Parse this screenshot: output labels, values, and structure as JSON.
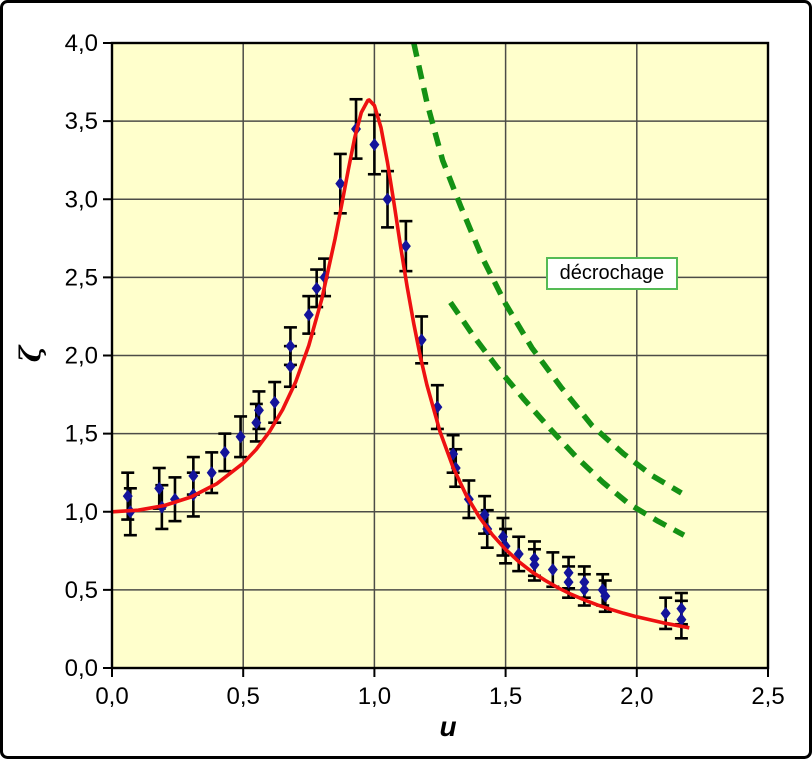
{
  "figure": {
    "page_background": "#ffffff",
    "frame_color": "#000000",
    "plot_background": "#ffffcc",
    "grid_color": "#4d4d47",
    "axis_color": "#000000"
  },
  "chart_data": {
    "type": "scatter",
    "title": "",
    "xlabel": "u",
    "ylabel": "ζ",
    "xlim": [
      0.0,
      2.5
    ],
    "ylim": [
      0.0,
      4.0
    ],
    "grid": true,
    "x_ticks": [
      {
        "value": 0.0,
        "label": "0,0"
      },
      {
        "value": 0.5,
        "label": "0,5"
      },
      {
        "value": 1.0,
        "label": "1,0"
      },
      {
        "value": 1.5,
        "label": "1,5"
      },
      {
        "value": 2.0,
        "label": "2,0"
      },
      {
        "value": 2.5,
        "label": "2,5"
      }
    ],
    "y_ticks": [
      {
        "value": 0.0,
        "label": "0,0"
      },
      {
        "value": 0.5,
        "label": "0,5"
      },
      {
        "value": 1.0,
        "label": "1,0"
      },
      {
        "value": 1.5,
        "label": "1,5"
      },
      {
        "value": 2.0,
        "label": "2,0"
      },
      {
        "value": 2.5,
        "label": "2,5"
      },
      {
        "value": 3.0,
        "label": "3,0"
      },
      {
        "value": 3.5,
        "label": "3,5"
      },
      {
        "value": 4.0,
        "label": "4,0"
      }
    ],
    "annotation": {
      "text": "décrochage",
      "x": 1.885,
      "y": 2.53,
      "border_color": "#55bb55",
      "background": "#ffffff"
    },
    "series": [
      {
        "name": "measured-points",
        "type": "scatter",
        "marker": "diamond",
        "color": "#14149b",
        "error_bar_color": "#000000",
        "points": [
          [
            0.06,
            1.1,
            0.15
          ],
          [
            0.07,
            1.0,
            0.15
          ],
          [
            0.18,
            1.15,
            0.13
          ],
          [
            0.19,
            1.03,
            0.14
          ],
          [
            0.24,
            1.08,
            0.14
          ],
          [
            0.31,
            1.23,
            0.12
          ],
          [
            0.31,
            1.11,
            0.14
          ],
          [
            0.38,
            1.25,
            0.13
          ],
          [
            0.43,
            1.38,
            0.12
          ],
          [
            0.49,
            1.48,
            0.13
          ],
          [
            0.55,
            1.57,
            0.12
          ],
          [
            0.56,
            1.65,
            0.12
          ],
          [
            0.62,
            1.7,
            0.13
          ],
          [
            0.68,
            1.93,
            0.13
          ],
          [
            0.68,
            2.06,
            0.12
          ],
          [
            0.75,
            2.26,
            0.12
          ],
          [
            0.78,
            2.43,
            0.12
          ],
          [
            0.81,
            2.5,
            0.12
          ],
          [
            0.87,
            3.1,
            0.19
          ],
          [
            0.93,
            3.45,
            0.19
          ],
          [
            1.0,
            3.35,
            0.19
          ],
          [
            1.05,
            3.0,
            0.18
          ],
          [
            1.12,
            2.7,
            0.16
          ],
          [
            1.18,
            2.1,
            0.15
          ],
          [
            1.24,
            1.67,
            0.14
          ],
          [
            1.3,
            1.37,
            0.12
          ],
          [
            1.31,
            1.28,
            0.12
          ],
          [
            1.36,
            1.08,
            0.12
          ],
          [
            1.42,
            0.98,
            0.12
          ],
          [
            1.43,
            0.89,
            0.12
          ],
          [
            1.49,
            0.84,
            0.12
          ],
          [
            1.5,
            0.78,
            0.11
          ],
          [
            1.55,
            0.73,
            0.11
          ],
          [
            1.61,
            0.7,
            0.11
          ],
          [
            1.61,
            0.66,
            0.1
          ],
          [
            1.68,
            0.63,
            0.11
          ],
          [
            1.74,
            0.61,
            0.1
          ],
          [
            1.74,
            0.55,
            0.1
          ],
          [
            1.8,
            0.55,
            0.1
          ],
          [
            1.8,
            0.5,
            0.1
          ],
          [
            1.87,
            0.5,
            0.1
          ],
          [
            1.88,
            0.46,
            0.1
          ],
          [
            2.11,
            0.35,
            0.1
          ],
          [
            2.17,
            0.38,
            0.1
          ],
          [
            2.17,
            0.31,
            0.12
          ]
        ]
      },
      {
        "name": "resonance-fit-curve",
        "type": "line",
        "color": "#ee1111",
        "width": 3.6,
        "points": [
          [
            0.0,
            1.0
          ],
          [
            0.1,
            1.01
          ],
          [
            0.2,
            1.04
          ],
          [
            0.3,
            1.094
          ],
          [
            0.4,
            1.18
          ],
          [
            0.5,
            1.311
          ],
          [
            0.55,
            1.4
          ],
          [
            0.6,
            1.512
          ],
          [
            0.65,
            1.653
          ],
          [
            0.7,
            1.832
          ],
          [
            0.75,
            2.064
          ],
          [
            0.8,
            2.364
          ],
          [
            0.85,
            2.745
          ],
          [
            0.875,
            2.962
          ],
          [
            0.9,
            3.185
          ],
          [
            0.925,
            3.393
          ],
          [
            0.95,
            3.555
          ],
          [
            0.975,
            3.632
          ],
          [
            0.98,
            3.635
          ],
          [
            1.0,
            3.6
          ],
          [
            1.025,
            3.458
          ],
          [
            1.05,
            3.235
          ],
          [
            1.075,
            2.97
          ],
          [
            1.1,
            2.697
          ],
          [
            1.125,
            2.438
          ],
          [
            1.15,
            2.203
          ],
          [
            1.175,
            1.994
          ],
          [
            1.2,
            1.812
          ],
          [
            1.25,
            1.513
          ],
          [
            1.3,
            1.284
          ],
          [
            1.35,
            1.106
          ],
          [
            1.4,
            0.965
          ],
          [
            1.45,
            0.852
          ],
          [
            1.5,
            0.759
          ],
          [
            1.55,
            0.681
          ],
          [
            1.6,
            0.616
          ],
          [
            1.65,
            0.561
          ],
          [
            1.7,
            0.513
          ],
          [
            1.75,
            0.472
          ],
          [
            1.8,
            0.436
          ],
          [
            1.85,
            0.404
          ],
          [
            1.9,
            0.376
          ],
          [
            1.95,
            0.35
          ],
          [
            2.0,
            0.328
          ],
          [
            2.1,
            0.289
          ],
          [
            2.2,
            0.257
          ]
        ]
      },
      {
        "name": "decrochage-upper-curve",
        "type": "dashed",
        "color": "#149114",
        "width": 5.5,
        "dash": "14 9",
        "points": [
          [
            1.15,
            4.0
          ],
          [
            1.2,
            3.62
          ],
          [
            1.26,
            3.25
          ],
          [
            1.33,
            2.95
          ],
          [
            1.41,
            2.63
          ],
          [
            1.5,
            2.33
          ],
          [
            1.6,
            2.05
          ],
          [
            1.71,
            1.8
          ],
          [
            1.83,
            1.55
          ],
          [
            1.95,
            1.37
          ],
          [
            2.06,
            1.23
          ],
          [
            2.17,
            1.12
          ]
        ]
      },
      {
        "name": "decrochage-lower-curve",
        "type": "dashed",
        "color": "#149114",
        "width": 5.5,
        "dash": "14 9",
        "points": [
          [
            1.29,
            2.34
          ],
          [
            1.38,
            2.12
          ],
          [
            1.47,
            1.92
          ],
          [
            1.57,
            1.72
          ],
          [
            1.67,
            1.53
          ],
          [
            1.77,
            1.35
          ],
          [
            1.87,
            1.19
          ],
          [
            1.97,
            1.05
          ],
          [
            2.08,
            0.94
          ],
          [
            2.18,
            0.85
          ]
        ]
      }
    ]
  }
}
